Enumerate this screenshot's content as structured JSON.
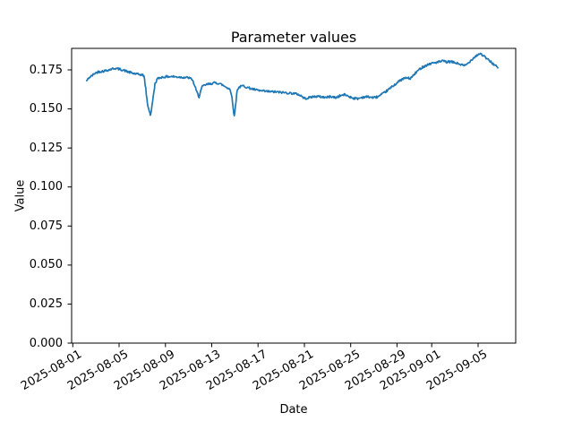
{
  "chart_data": {
    "type": "line",
    "title": "Parameter values",
    "xlabel": "Date",
    "ylabel": "Value",
    "grid": false,
    "legend": null,
    "line_color": "#1f77b4",
    "background_color": "#ffffff",
    "x_unit": "days since 2025-08-01",
    "xlim": [
      -0.1,
      38.25
    ],
    "ylim": [
      0.0,
      0.1888
    ],
    "noise_amplitude": 0.0007,
    "xticks": [
      {
        "label": "2025-08-01",
        "day": 0
      },
      {
        "label": "2025-08-05",
        "day": 4
      },
      {
        "label": "2025-08-09",
        "day": 8
      },
      {
        "label": "2025-08-13",
        "day": 12
      },
      {
        "label": "2025-08-17",
        "day": 16
      },
      {
        "label": "2025-08-21",
        "day": 20
      },
      {
        "label": "2025-08-25",
        "day": 24
      },
      {
        "label": "2025-08-29",
        "day": 28
      },
      {
        "label": "2025-09-01",
        "day": 31
      },
      {
        "label": "2025-09-05",
        "day": 35
      }
    ],
    "yticks": [
      {
        "label": "0.000",
        "value": 0.0
      },
      {
        "label": "0.025",
        "value": 0.025
      },
      {
        "label": "0.050",
        "value": 0.05
      },
      {
        "label": "0.075",
        "value": 0.075
      },
      {
        "label": "0.100",
        "value": 0.1
      },
      {
        "label": "0.125",
        "value": 0.125
      },
      {
        "label": "0.150",
        "value": 0.15
      },
      {
        "label": "0.175",
        "value": 0.175
      }
    ],
    "points": [
      [
        1.2,
        0.168
      ],
      [
        1.4,
        0.17
      ],
      [
        1.7,
        0.1715
      ],
      [
        1.9,
        0.1728
      ],
      [
        2.2,
        0.1738
      ],
      [
        2.6,
        0.1742
      ],
      [
        3.0,
        0.1748
      ],
      [
        3.4,
        0.1757
      ],
      [
        3.7,
        0.176
      ],
      [
        4.0,
        0.1755
      ],
      [
        4.4,
        0.1748
      ],
      [
        4.8,
        0.1737
      ],
      [
        5.2,
        0.1728
      ],
      [
        5.6,
        0.1722
      ],
      [
        6.0,
        0.1718
      ],
      [
        6.15,
        0.1712
      ],
      [
        6.3,
        0.163
      ],
      [
        6.45,
        0.153
      ],
      [
        6.6,
        0.149
      ],
      [
        6.7,
        0.1462
      ],
      [
        6.8,
        0.1495
      ],
      [
        6.95,
        0.158
      ],
      [
        7.1,
        0.166
      ],
      [
        7.3,
        0.1693
      ],
      [
        7.6,
        0.1702
      ],
      [
        8.0,
        0.1706
      ],
      [
        8.5,
        0.1708
      ],
      [
        9.0,
        0.1705
      ],
      [
        9.5,
        0.1703
      ],
      [
        10.0,
        0.17
      ],
      [
        10.3,
        0.169
      ],
      [
        10.5,
        0.1655
      ],
      [
        10.7,
        0.161
      ],
      [
        10.9,
        0.1578
      ],
      [
        11.05,
        0.1615
      ],
      [
        11.2,
        0.1645
      ],
      [
        11.5,
        0.1655
      ],
      [
        11.9,
        0.1662
      ],
      [
        12.3,
        0.1668
      ],
      [
        12.7,
        0.1662
      ],
      [
        13.0,
        0.165
      ],
      [
        13.3,
        0.1638
      ],
      [
        13.55,
        0.1628
      ],
      [
        13.75,
        0.1582
      ],
      [
        13.85,
        0.15
      ],
      [
        13.95,
        0.1452
      ],
      [
        14.05,
        0.152
      ],
      [
        14.2,
        0.1624
      ],
      [
        14.4,
        0.1641
      ],
      [
        14.7,
        0.1648
      ],
      [
        15.0,
        0.164
      ],
      [
        15.4,
        0.163
      ],
      [
        15.8,
        0.1622
      ],
      [
        16.2,
        0.1616
      ],
      [
        16.6,
        0.1613
      ],
      [
        17.0,
        0.1611
      ],
      [
        17.5,
        0.1609
      ],
      [
        18.0,
        0.1606
      ],
      [
        18.5,
        0.1603
      ],
      [
        19.0,
        0.16
      ],
      [
        19.4,
        0.1595
      ],
      [
        19.7,
        0.1585
      ],
      [
        20.0,
        0.1567
      ],
      [
        20.3,
        0.157
      ],
      [
        20.7,
        0.1578
      ],
      [
        21.1,
        0.158
      ],
      [
        21.5,
        0.1577
      ],
      [
        21.9,
        0.1574
      ],
      [
        22.3,
        0.158
      ],
      [
        22.7,
        0.1572
      ],
      [
        23.1,
        0.1585
      ],
      [
        23.5,
        0.1592
      ],
      [
        23.9,
        0.1578
      ],
      [
        24.25,
        0.1569
      ],
      [
        24.6,
        0.1566
      ],
      [
        25.0,
        0.1575
      ],
      [
        25.5,
        0.1578
      ],
      [
        26.0,
        0.1572
      ],
      [
        26.4,
        0.158
      ],
      [
        26.8,
        0.1598
      ],
      [
        27.1,
        0.1615
      ],
      [
        27.4,
        0.1632
      ],
      [
        27.7,
        0.165
      ],
      [
        28.0,
        0.1667
      ],
      [
        28.3,
        0.1684
      ],
      [
        28.6,
        0.1695
      ],
      [
        28.9,
        0.1699
      ],
      [
        29.1,
        0.1694
      ],
      [
        29.3,
        0.1705
      ],
      [
        29.6,
        0.173
      ],
      [
        29.9,
        0.1752
      ],
      [
        30.2,
        0.1768
      ],
      [
        30.6,
        0.1782
      ],
      [
        31.0,
        0.1793
      ],
      [
        31.4,
        0.1798
      ],
      [
        31.8,
        0.1804
      ],
      [
        32.0,
        0.1808
      ],
      [
        32.3,
        0.1799
      ],
      [
        32.6,
        0.1803
      ],
      [
        32.9,
        0.1798
      ],
      [
        33.2,
        0.1792
      ],
      [
        33.5,
        0.1785
      ],
      [
        33.8,
        0.1776
      ],
      [
        34.1,
        0.179
      ],
      [
        34.4,
        0.1813
      ],
      [
        34.7,
        0.1833
      ],
      [
        35.0,
        0.1849
      ],
      [
        35.2,
        0.1855
      ],
      [
        35.45,
        0.1841
      ],
      [
        35.75,
        0.1822
      ],
      [
        36.05,
        0.1805
      ],
      [
        36.35,
        0.1786
      ],
      [
        36.6,
        0.1772
      ],
      [
        36.7,
        0.1763
      ]
    ]
  }
}
